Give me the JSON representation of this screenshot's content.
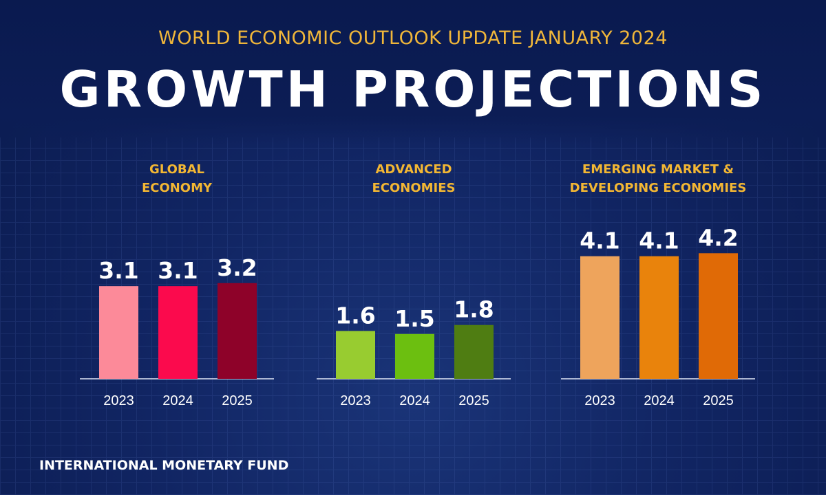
{
  "header": {
    "subtitle": "WORLD ECONOMIC OUTLOOK UPDATE JANUARY 2024",
    "title": "GROWTH PROJECTIONS"
  },
  "footer": {
    "organization": "INTERNATIONAL MONETARY FUND"
  },
  "chart_data": [
    {
      "type": "bar",
      "title_lines": [
        "GLOBAL",
        "ECONOMY"
      ],
      "categories": [
        "2023",
        "2024",
        "2025"
      ],
      "values": [
        3.1,
        3.1,
        3.2
      ],
      "colors": [
        "#fc8a99",
        "#fb0a4d",
        "#8e0229"
      ]
    },
    {
      "type": "bar",
      "title_lines": [
        "ADVANCED",
        "ECONOMIES"
      ],
      "categories": [
        "2023",
        "2024",
        "2025"
      ],
      "values": [
        1.6,
        1.5,
        1.8
      ],
      "colors": [
        "#98cc30",
        "#6cbf10",
        "#4f7d12"
      ]
    },
    {
      "type": "bar",
      "title_lines": [
        "EMERGING MARKET &",
        "DEVELOPING ECONOMIES"
      ],
      "categories": [
        "2023",
        "2024",
        "2025"
      ],
      "values": [
        4.1,
        4.1,
        4.2
      ],
      "colors": [
        "#eea45c",
        "#e9830c",
        "#e06a06"
      ]
    }
  ]
}
